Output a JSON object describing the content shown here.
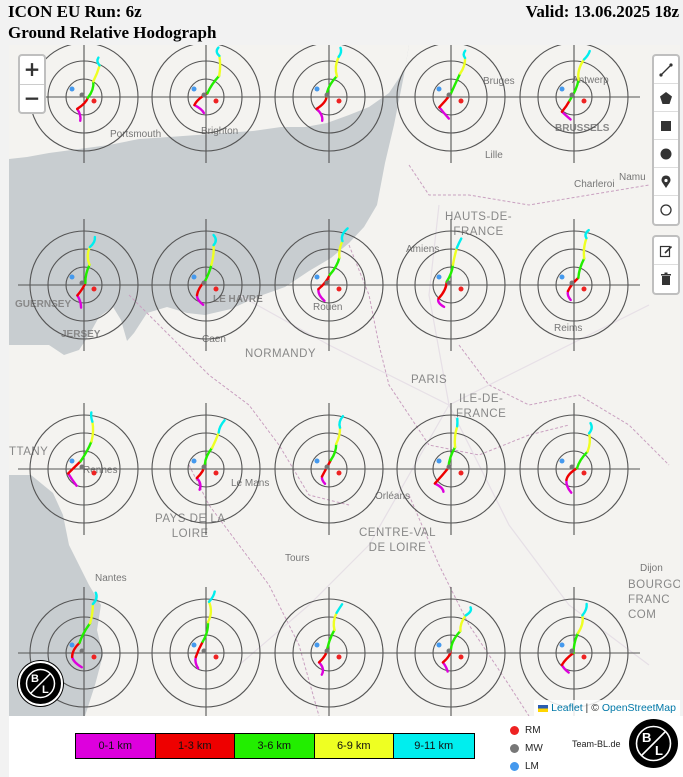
{
  "header": {
    "run": "ICON EU Run: 6z",
    "subtitle": "Ground Relative Hodograph",
    "valid": "Valid: 13.06.2025 18z"
  },
  "map_controls": {
    "zoom_in": "+",
    "zoom_out": "−",
    "draw_tools": [
      "polyline-icon",
      "polygon-icon",
      "rectangle-icon",
      "circle-icon",
      "marker-icon",
      "circlemarker-icon"
    ],
    "edit_tools": [
      "edit-icon",
      "trash-icon"
    ]
  },
  "attribution": {
    "leaflet": "Leaflet",
    "separator": " | © ",
    "osm": "OpenStreetMap"
  },
  "logo": {
    "text": "BL"
  },
  "places": {
    "portsmouth": "Portsmouth",
    "brighton": "Brighton",
    "bruges": "Bruges",
    "antwerp": "Antwerp",
    "brussels": "BRUSSELS",
    "lille": "Lille",
    "charleroi": "Charleroi",
    "namur": "Namu",
    "hauts_de_france": "HAUTS-DE-\nFRANCE",
    "amiens": "Amiens",
    "guernsey": "GUERNSEY",
    "jersey": "JERSEY",
    "le_havre": "LE HAVRE",
    "rouen": "Rouen",
    "caen": "Caen",
    "normandy": "NORMANDY",
    "reims": "Reims",
    "paris": "PARIS",
    "ile_de_france": "ILE-DE-\nFRANCE",
    "brittany": "TTANY",
    "rennes": "Rennes",
    "le_mans": "Le Mans",
    "orleans": "Orléans",
    "pays_de_la_loire": "PAYS DE LA\nLOIRE",
    "centre_val_de_loire": "CENTRE-VAL\nDE LOIRE",
    "tours": "Tours",
    "dijon": "Dijon",
    "bourgogne": "BOURGO\nFRANC\nCOM",
    "nantes": "Nantes"
  },
  "legend": {
    "bands": [
      {
        "label": "0-1 km",
        "color": "#dd00dd"
      },
      {
        "label": "1-3 km",
        "color": "#ee0000"
      },
      {
        "label": "3-6 km",
        "color": "#22ee00"
      },
      {
        "label": "6-9 km",
        "color": "#eeff22"
      },
      {
        "label": "9-11 km",
        "color": "#00eeee"
      }
    ],
    "motion": [
      {
        "label": "RM",
        "color": "#ee2222"
      },
      {
        "label": "MW",
        "color": "#777777"
      },
      {
        "label": "LM",
        "color": "#4499ee"
      }
    ],
    "brand": "Team-BL.de"
  },
  "colors": {
    "land": "#f4f3f0",
    "water": "#c8cdd0",
    "border": "#c9a0c0",
    "rings": "#555555"
  }
}
